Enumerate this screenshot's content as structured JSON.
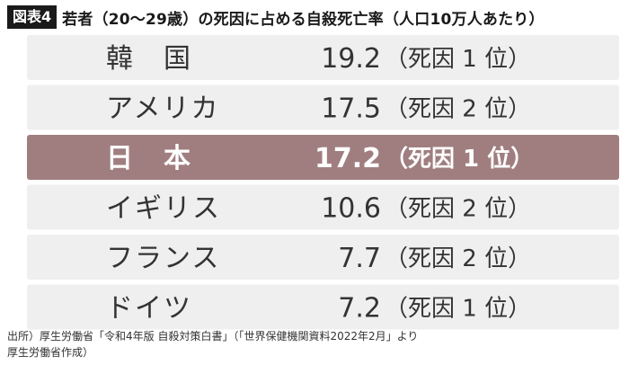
{
  "figure_label": "図表4",
  "title": "若者（20〜29歳）の死因に占める自殺死亡率（人口10万人あたり）",
  "source": {
    "line1": "出所）厚生労働省「令和4年版 自殺対策白書」（「世界保健機関資料2022年2月」より",
    "line2": "厚生労働省作成）"
  },
  "colors": {
    "row_background": "#efefef",
    "highlight_background": "#a07e7f",
    "highlight_text": "#ffffff",
    "text": "#333333"
  },
  "chart_data": {
    "type": "table",
    "columns": [
      "country",
      "value",
      "rank"
    ],
    "rows": [
      {
        "country": "韓　国",
        "value": "19.2",
        "rank": "（死因 1 位）",
        "highlight": false
      },
      {
        "country": "アメリカ",
        "value": "17.5",
        "rank": "（死因 2 位）",
        "highlight": false
      },
      {
        "country": "日　本",
        "value": "17.2",
        "rank": "（死因 1 位）",
        "highlight": true
      },
      {
        "country": "イギリス",
        "value": "10.6",
        "rank": "（死因 2 位）",
        "highlight": false
      },
      {
        "country": "フランス",
        "value": "7.7",
        "rank": "（死因 2 位）",
        "highlight": false
      },
      {
        "country": "ドイツ",
        "value": "7.2",
        "rank": "（死因 1 位）",
        "highlight": false
      }
    ]
  }
}
